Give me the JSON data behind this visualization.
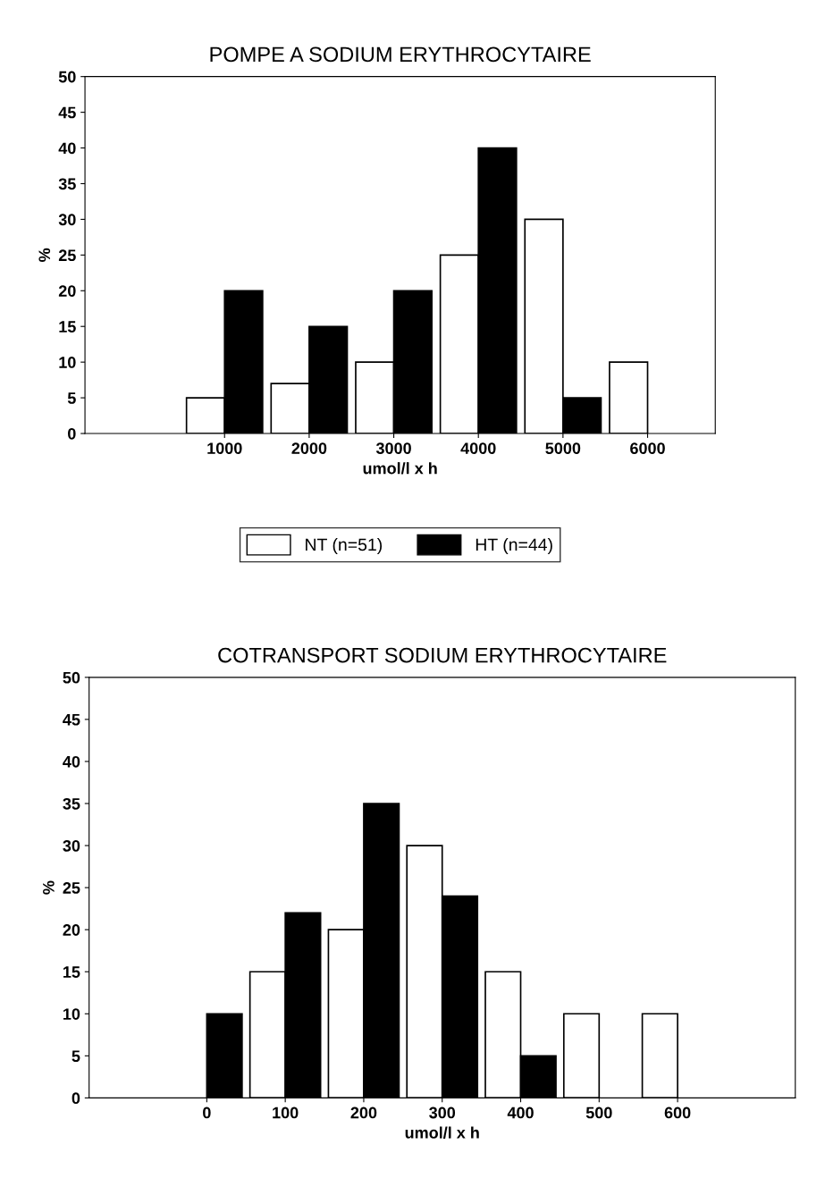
{
  "chart_data": [
    {
      "type": "bar",
      "title": "POMPE A SODIUM ERYTHROCYTAIRE",
      "xlabel": "umol/l x h",
      "ylabel": "%",
      "categories": [
        null,
        "1000",
        "2000",
        "3000",
        "4000",
        "5000",
        "6000"
      ],
      "series": [
        {
          "name": "NT (n=51)",
          "color": "#ffffff",
          "values": [
            null,
            5,
            7,
            10,
            25,
            30,
            10
          ]
        },
        {
          "name": "HT (n=44)",
          "color": "#000000",
          "values": [
            null,
            20,
            15,
            20,
            40,
            5,
            null
          ]
        }
      ],
      "ylim": [
        0,
        50
      ],
      "yticks": [
        0,
        5,
        10,
        15,
        20,
        25,
        30,
        35,
        40,
        45,
        50
      ],
      "grid": false,
      "legend": "bottom"
    },
    {
      "type": "bar",
      "title": "COTRANSPORT SODIUM ERYTHROCYTAIRE",
      "xlabel": "umol/l x h",
      "ylabel": "%",
      "categories": [
        null,
        "0",
        "100",
        "200",
        "300",
        "400",
        "500",
        "600",
        null
      ],
      "series": [
        {
          "color": "#ffffff",
          "values": [
            null,
            null,
            15,
            20,
            30,
            15,
            10,
            10,
            null
          ]
        },
        {
          "color": "#000000",
          "values": [
            null,
            10,
            22,
            35,
            24,
            5,
            null,
            null,
            null
          ]
        }
      ],
      "ylim": [
        0,
        50
      ],
      "yticks": [
        0,
        5,
        10,
        15,
        20,
        25,
        30,
        35,
        40,
        45,
        50
      ],
      "grid": false,
      "legend": false
    }
  ]
}
